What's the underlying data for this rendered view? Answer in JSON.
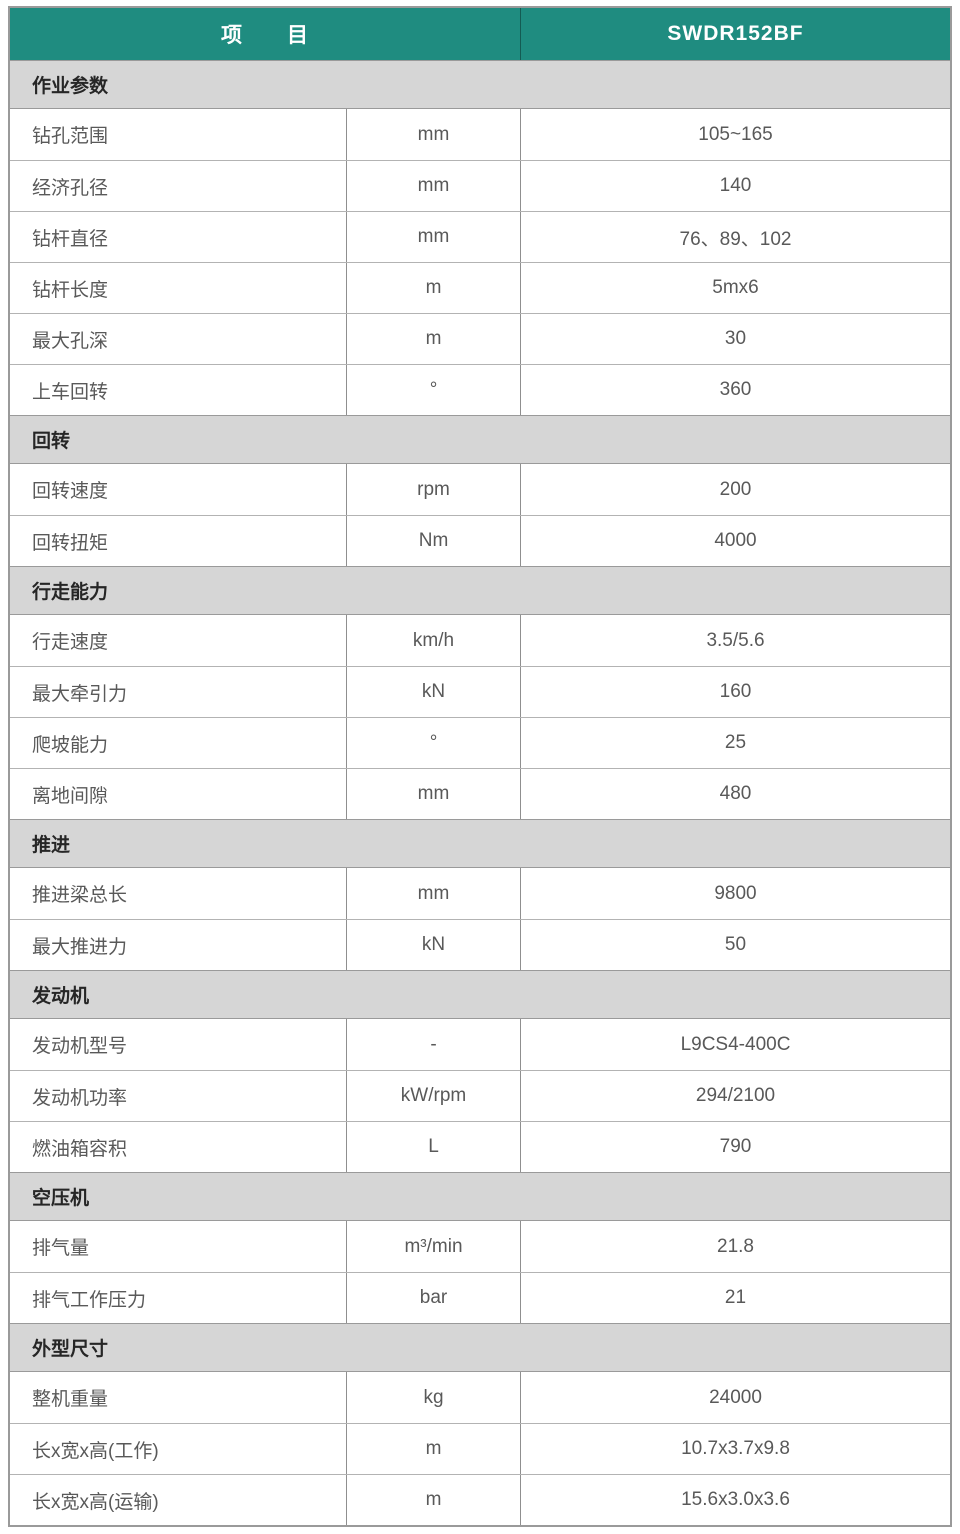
{
  "table": {
    "header": {
      "item_label": "项　　目",
      "model_label": "SWDR152BF"
    },
    "colors": {
      "header_bg": "#1f8c80",
      "header_text": "#ffffff",
      "section_bg": "#d6d6d6",
      "section_text": "#262626",
      "row_text": "#595959",
      "border_outer": "#9a9a9a",
      "border_inner": "#8f8f8f"
    },
    "sections": [
      {
        "title": "作业参数",
        "rows": [
          {
            "name": "钻孔范围",
            "unit": "mm",
            "value": "105~165"
          },
          {
            "name": "经济孔径",
            "unit": "mm",
            "value": "140"
          },
          {
            "name": "钻杆直径",
            "unit": "mm",
            "value": "76、89、102"
          },
          {
            "name": "钻杆长度",
            "unit": "m",
            "value": "5mx6"
          },
          {
            "name": "最大孔深",
            "unit": "m",
            "value": "30"
          },
          {
            "name": "上车回转",
            "unit": "°",
            "value": "360"
          }
        ]
      },
      {
        "title": "回转",
        "rows": [
          {
            "name": "回转速度",
            "unit": "rpm",
            "value": "200"
          },
          {
            "name": "回转扭矩",
            "unit": "Nm",
            "value": "4000"
          }
        ]
      },
      {
        "title": "行走能力",
        "rows": [
          {
            "name": "行走速度",
            "unit": "km/h",
            "value": "3.5/5.6"
          },
          {
            "name": "最大牵引力",
            "unit": "kN",
            "value": "160"
          },
          {
            "name": "爬坡能力",
            "unit": "°",
            "value": "25"
          },
          {
            "name": "离地间隙",
            "unit": "mm",
            "value": "480"
          }
        ]
      },
      {
        "title": "推进",
        "rows": [
          {
            "name": "推进梁总长",
            "unit": "mm",
            "value": "9800"
          },
          {
            "name": "最大推进力",
            "unit": "kN",
            "value": "50"
          }
        ]
      },
      {
        "title": "发动机",
        "rows": [
          {
            "name": "发动机型号",
            "unit": "-",
            "value": "L9CS4-400C"
          },
          {
            "name": "发动机功率",
            "unit": "kW/rpm",
            "value": "294/2100"
          },
          {
            "name": "燃油箱容积",
            "unit": "L",
            "value": "790"
          }
        ]
      },
      {
        "title": "空压机",
        "rows": [
          {
            "name": "排气量",
            "unit": "m³/min",
            "value": "21.8"
          },
          {
            "name": "排气工作压力",
            "unit": "bar",
            "value": "21"
          }
        ]
      },
      {
        "title": "外型尺寸",
        "rows": [
          {
            "name": "整机重量",
            "unit": "kg",
            "value": "24000"
          },
          {
            "name": "长x宽x高(工作)",
            "unit": "m",
            "value": "10.7x3.7x9.8"
          },
          {
            "name": "长x宽x高(运输)",
            "unit": "m",
            "value": "15.6x3.0x3.6"
          }
        ]
      }
    ]
  }
}
